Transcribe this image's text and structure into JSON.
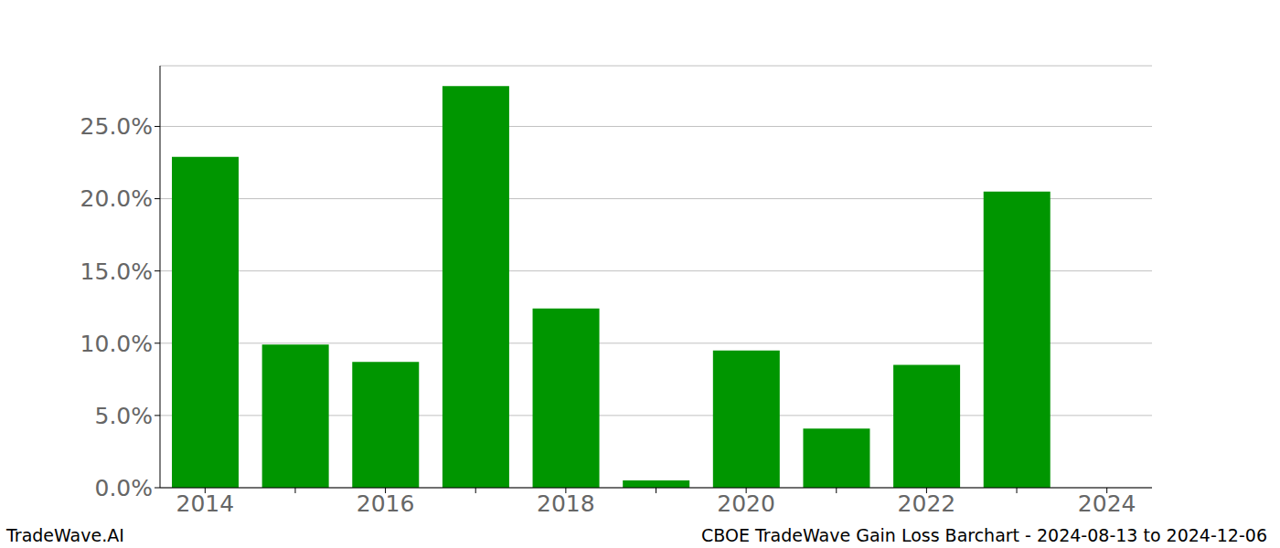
{
  "chart_data": {
    "type": "bar",
    "categories": [
      "2014",
      null,
      "2016",
      null,
      "2018",
      null,
      "2020",
      null,
      "2022",
      null,
      "2024"
    ],
    "values": [
      22.9,
      9.9,
      8.7,
      27.8,
      12.4,
      0.5,
      9.5,
      4.1,
      8.5,
      20.5,
      null
    ],
    "color": "#009600",
    "ylim": [
      0,
      29.2
    ],
    "yticks": [
      {
        "value": 0,
        "label": "0.0%"
      },
      {
        "value": 5,
        "label": "5.0%"
      },
      {
        "value": 10,
        "label": "10.0%"
      },
      {
        "value": 15,
        "label": "15.0%"
      },
      {
        "value": 20,
        "label": "20.0%"
      },
      {
        "value": 25,
        "label": "25.0%"
      }
    ],
    "grid": true,
    "annotations": [
      "TradeWave.AI",
      "CBOE TradeWave Gain Loss Barchart - 2024-08-13 to 2024-12-06"
    ]
  }
}
